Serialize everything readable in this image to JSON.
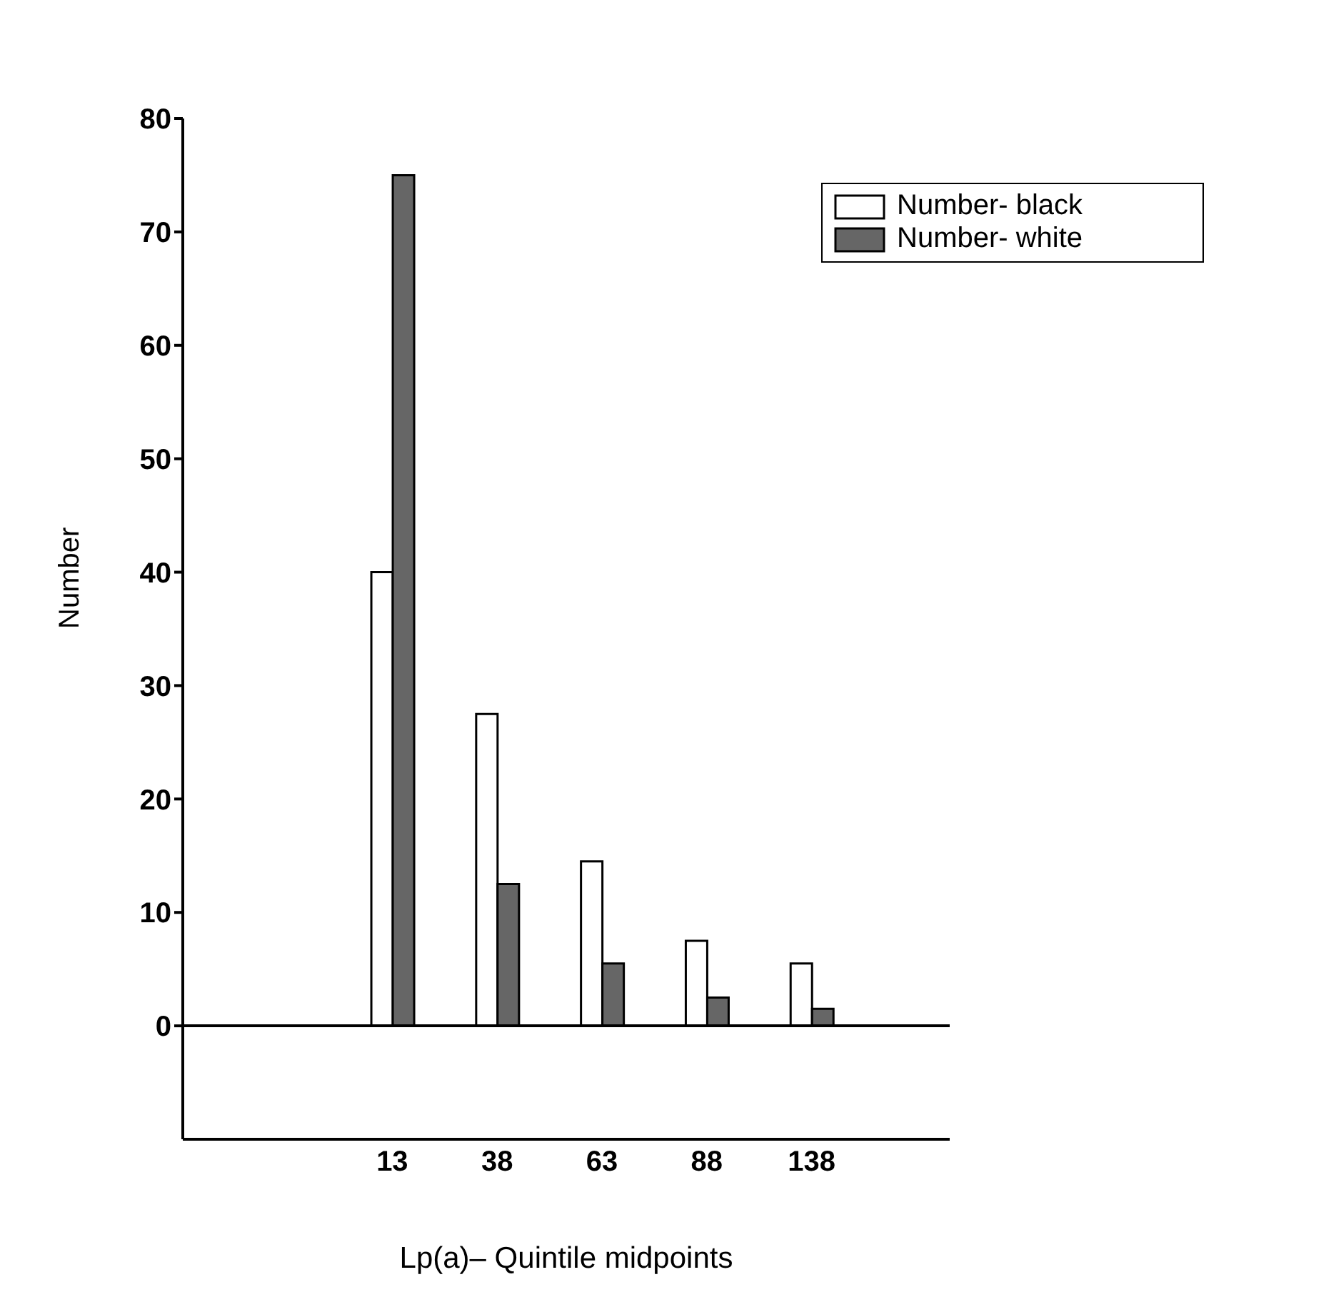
{
  "chart_data": {
    "type": "bar",
    "xlabel": "Lp(a)– Quintile midpoints",
    "ylabel": "Number",
    "categories": [
      "13",
      "38",
      "63",
      "88",
      "138"
    ],
    "series": [
      {
        "name": "Number- black",
        "color": "#ffffff",
        "values": [
          40,
          27.5,
          14.5,
          7.5,
          5.5
        ]
      },
      {
        "name": "Number- white",
        "color": "#666666",
        "values": [
          75,
          12.5,
          5.5,
          2.5,
          1.5
        ]
      }
    ],
    "ylim": [
      -10,
      80
    ],
    "yticks": [
      0,
      10,
      20,
      30,
      40,
      50,
      60,
      70,
      80
    ],
    "ref_lines": [
      {
        "axis": "y",
        "value": 0,
        "color": "#000000"
      }
    ],
    "grid": false,
    "legend": "top right"
  }
}
